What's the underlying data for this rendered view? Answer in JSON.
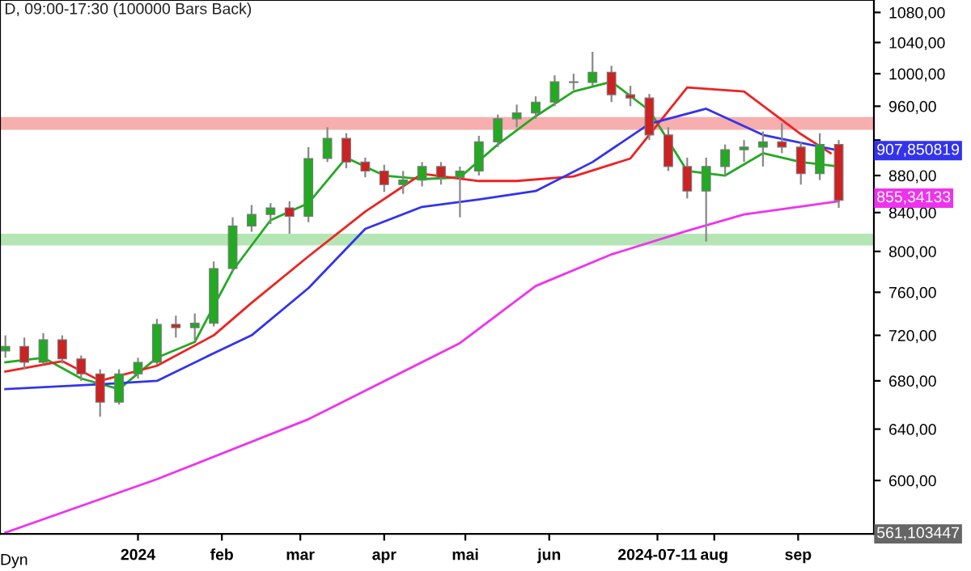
{
  "chart_data": {
    "type": "candlestick",
    "title": "D, 09:00-17:30 (100000 Bars Back)",
    "x": [
      "2023-11-13",
      "2023-11-20",
      "2023-11-27",
      "2023-12-04",
      "2023-12-11",
      "2023-12-18",
      "2023-12-25",
      "2024-01-01",
      "2024-01-08",
      "2024-01-15",
      "2024-01-22",
      "2024-01-29",
      "2024-02-05",
      "2024-02-12",
      "2024-02-19",
      "2024-02-26",
      "2024-03-04",
      "2024-03-11",
      "2024-03-18",
      "2024-03-25",
      "2024-04-01",
      "2024-04-08",
      "2024-04-15",
      "2024-04-22",
      "2024-04-29",
      "2024-05-06",
      "2024-05-13",
      "2024-05-20",
      "2024-05-27",
      "2024-06-03",
      "2024-06-10",
      "2024-06-17",
      "2024-06-24",
      "2024-07-01",
      "2024-07-08",
      "2024-07-15",
      "2024-07-22",
      "2024-07-29",
      "2024-08-05",
      "2024-08-12",
      "2024-08-19",
      "2024-08-26",
      "2024-09-02",
      "2024-09-09",
      "2024-09-16"
    ],
    "ohlc": [
      [
        706,
        720,
        700,
        710
      ],
      [
        710,
        718,
        690,
        696
      ],
      [
        696,
        722,
        694,
        716
      ],
      [
        716,
        720,
        695,
        699
      ],
      [
        699,
        702,
        680,
        686
      ],
      [
        686,
        690,
        650,
        662
      ],
      [
        662,
        690,
        660,
        686
      ],
      [
        686,
        700,
        682,
        696
      ],
      [
        696,
        735,
        694,
        730
      ],
      [
        730,
        738,
        718,
        727
      ],
      [
        727,
        740,
        715,
        731
      ],
      [
        731,
        790,
        728,
        783
      ],
      [
        783,
        835,
        780,
        826
      ],
      [
        826,
        848,
        820,
        838
      ],
      [
        838,
        850,
        828,
        845
      ],
      [
        845,
        852,
        818,
        836
      ],
      [
        836,
        912,
        830,
        899
      ],
      [
        899,
        935,
        895,
        922
      ],
      [
        922,
        928,
        888,
        895
      ],
      [
        895,
        900,
        878,
        885
      ],
      [
        885,
        892,
        862,
        870
      ],
      [
        870,
        885,
        860,
        875
      ],
      [
        875,
        895,
        868,
        890
      ],
      [
        890,
        895,
        870,
        878
      ],
      [
        878,
        890,
        835,
        885
      ],
      [
        885,
        925,
        880,
        918
      ],
      [
        918,
        950,
        912,
        945
      ],
      [
        945,
        962,
        935,
        952
      ],
      [
        952,
        972,
        945,
        965
      ],
      [
        965,
        998,
        960,
        990
      ],
      [
        990,
        1000,
        980,
        989
      ],
      [
        989,
        1028,
        985,
        1002
      ],
      [
        1002,
        1010,
        965,
        974
      ],
      [
        974,
        985,
        960,
        970
      ],
      [
        970,
        975,
        920,
        926
      ],
      [
        926,
        935,
        885,
        890
      ],
      [
        890,
        900,
        855,
        863
      ],
      [
        863,
        900,
        810,
        890
      ],
      [
        890,
        915,
        880,
        909
      ],
      [
        909,
        920,
        895,
        912
      ],
      [
        912,
        930,
        890,
        918
      ],
      [
        918,
        940,
        905,
        912
      ],
      [
        912,
        918,
        870,
        882
      ],
      [
        882,
        928,
        875,
        915
      ],
      [
        915,
        920,
        845,
        853
      ]
    ],
    "series": [
      {
        "type": "line",
        "color": "#22aa22",
        "x": [
          "2023-11-13",
          "2023-11-27",
          "2023-12-11",
          "2023-12-25",
          "2024-01-08",
          "2024-01-22",
          "2024-02-05",
          "2024-02-19",
          "2024-03-04",
          "2024-03-18",
          "2024-04-01",
          "2024-04-15",
          "2024-04-29",
          "2024-05-13",
          "2024-05-27",
          "2024-06-10",
          "2024-06-24",
          "2024-07-08",
          "2024-07-22",
          "2024-08-05",
          "2024-08-19",
          "2024-09-02",
          "2024-09-16"
        ],
        "values": [
          696,
          700,
          682,
          673,
          700,
          714,
          781,
          832,
          850,
          900,
          880,
          876,
          878,
          915,
          948,
          978,
          990,
          955,
          885,
          880,
          905,
          895,
          890
        ]
      },
      {
        "type": "line",
        "color": "#ee2222",
        "x": [
          "2023-11-13",
          "2023-12-04",
          "2023-12-18",
          "2024-01-08",
          "2024-01-29",
          "2024-02-12",
          "2024-03-04",
          "2024-03-25",
          "2024-04-15",
          "2024-05-06",
          "2024-05-20",
          "2024-06-10",
          "2024-07-01",
          "2024-07-22",
          "2024-08-12",
          "2024-09-02",
          "2024-09-13"
        ],
        "values": [
          688,
          697,
          680,
          693,
          720,
          750,
          795,
          841,
          882,
          874,
          874,
          879,
          899,
          983,
          978,
          927,
          905
        ]
      },
      {
        "type": "line",
        "color": "#3333ee",
        "x": [
          "2023-11-13",
          "2023-12-18",
          "2024-01-08",
          "2024-01-29",
          "2024-02-12",
          "2024-03-04",
          "2024-03-25",
          "2024-04-15",
          "2024-05-06",
          "2024-05-27",
          "2024-06-17",
          "2024-07-08",
          "2024-07-29",
          "2024-08-19",
          "2024-09-16"
        ],
        "values": [
          673,
          677,
          680,
          704,
          720,
          764,
          823,
          846,
          854,
          863,
          895,
          939,
          957,
          926,
          908
        ]
      },
      {
        "type": "line",
        "color": "#ee33ee",
        "x": [
          "2023-11-13",
          "2024-01-08",
          "2024-03-04",
          "2024-04-29",
          "2024-05-27",
          "2024-06-24",
          "2024-07-22",
          "2024-08-12",
          "2024-09-16"
        ],
        "values": [
          562,
          601,
          648,
          713,
          766,
          797,
          821,
          838,
          852
        ]
      }
    ],
    "bands": [
      {
        "axis": "y",
        "from": 932,
        "to": 947,
        "color": "#f4a0a0"
      },
      {
        "axis": "y",
        "from": 806,
        "to": 818,
        "color": "#a8e0a8"
      }
    ],
    "annotations": [
      {
        "text": "907,850819",
        "x": "2024-09-16",
        "y": 907.85
      },
      {
        "text": "855,34133",
        "x": "2024-09-16",
        "y": 855.34
      },
      "561,103447",
      "Dyn"
    ],
    "log": true,
    "ylim": [
      561.1,
      1097
    ],
    "yticks": [
      {
        "value": 600,
        "label": "600,00"
      },
      {
        "value": 640,
        "label": "640,00"
      },
      {
        "value": 680,
        "label": "680,00"
      },
      {
        "value": 720,
        "label": "720,00"
      },
      {
        "value": 760,
        "label": "760,00"
      },
      {
        "value": 800,
        "label": "800,00"
      },
      {
        "value": 840,
        "label": "840,00"
      },
      {
        "value": 880,
        "label": "880,00"
      },
      {
        "value": 920,
        "label": null
      },
      {
        "value": 960,
        "label": "960,00"
      },
      {
        "value": 1000,
        "label": "1000,00"
      },
      {
        "value": 1040,
        "label": "1040,00"
      },
      {
        "value": 1080,
        "label": "1080,00"
      }
    ],
    "xlim": [
      "2023-11-11",
      "2024-09-29"
    ],
    "xticks": [
      {
        "value": "2024-01-01",
        "label": "2024"
      },
      {
        "value": "2024-02-01",
        "label": "feb"
      },
      {
        "value": "2024-03-01",
        "label": "mar"
      },
      {
        "value": "2024-04-01",
        "label": "apr"
      },
      {
        "value": "2024-05-01",
        "label": "mai"
      },
      {
        "value": "2024-06-01",
        "label": "jun"
      },
      {
        "value": "2024-07-11",
        "label": "2024-07-11"
      },
      {
        "value": "2024-08-01",
        "label": "aug"
      },
      {
        "value": "2024-09-01",
        "label": "sep"
      }
    ],
    "grid": false
  }
}
